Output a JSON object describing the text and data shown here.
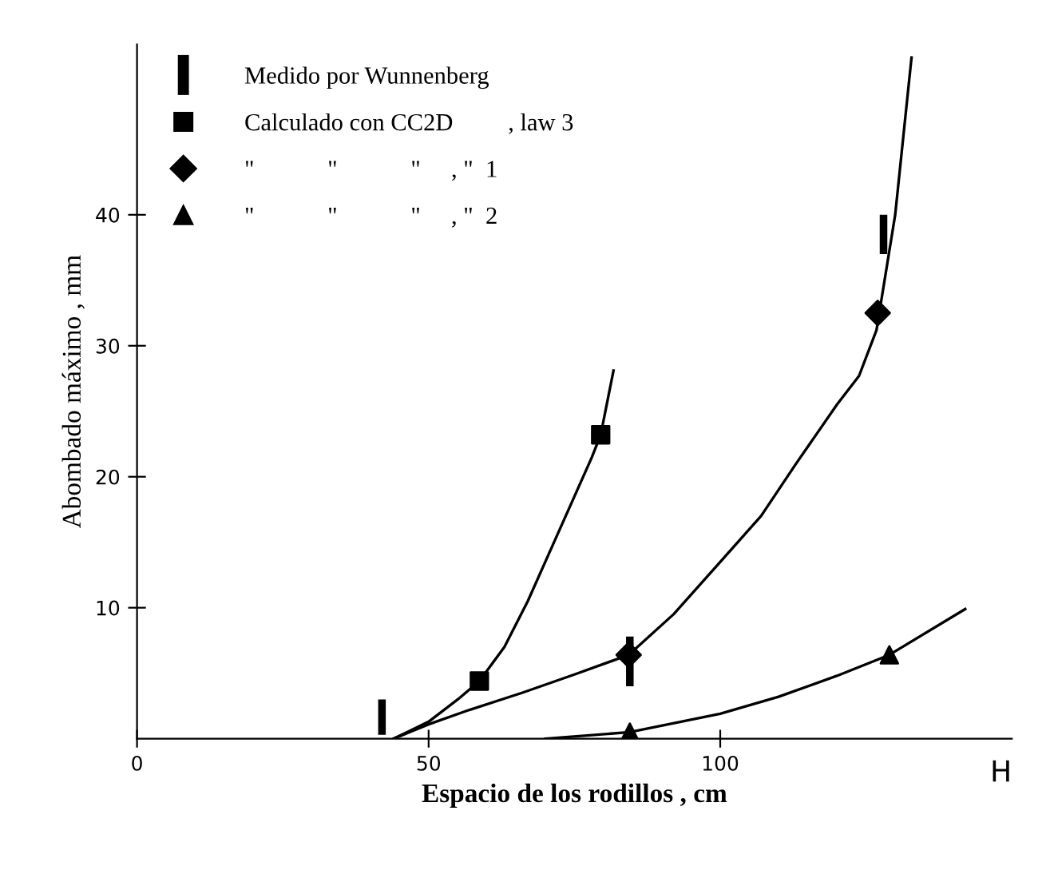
{
  "chart_data": {
    "type": "scatter",
    "xlabel": "Espacio de los rodillos , cm",
    "ylabel": "Abombado máximo , mm",
    "annotations": [
      "H"
    ],
    "xlim": [
      0,
      150
    ],
    "ylim": [
      0,
      53
    ],
    "xticks": [
      0,
      50,
      100
    ],
    "yticks": [
      10,
      20,
      30,
      40
    ],
    "grid": false,
    "legend": "top left",
    "series": [
      {
        "type": "bar",
        "name": "Medido por Wunnenberg",
        "color": "#000000",
        "x": [
          42,
          84.5,
          128
        ],
        "base": [
          0.3,
          4,
          37
        ],
        "values": [
          2.7,
          3.8,
          3
        ]
      },
      {
        "name": "Calculado con CC2D         , law 3",
        "color": "#000000",
        "marker": "square",
        "x": [
          58.7,
          79.5
        ],
        "values": [
          4.4,
          23.2
        ]
      },
      {
        "name": "\"            \"            \"     , \"  1",
        "color": "#000000",
        "marker": "diamond",
        "x": [
          84.3,
          127
        ],
        "values": [
          6.4,
          32.5
        ]
      },
      {
        "name": "\"            \"            \"     , \"  2",
        "color": "#000000",
        "marker": "triangle",
        "x": [
          84.5,
          129
        ],
        "values": [
          0.5,
          6.4
        ]
      },
      {
        "type": "line",
        "color": "#000000",
        "x": [
          44,
          50,
          55,
          58.7,
          63,
          67,
          71,
          75,
          78,
          79.5,
          81.7
        ],
        "values": [
          0,
          1.3,
          3,
          4.4,
          7,
          10.5,
          14.5,
          18.5,
          21.5,
          23.2,
          28.1
        ]
      },
      {
        "type": "line",
        "color": "#000000",
        "x": [
          44,
          50,
          57,
          66,
          75,
          84.3,
          92,
          100,
          107,
          113,
          120,
          123.8,
          126.8,
          130,
          132.8
        ],
        "values": [
          0,
          1.1,
          2.2,
          3.5,
          4.9,
          6.4,
          9.5,
          13.5,
          17,
          21,
          25.5,
          27.7,
          31.2,
          40,
          52
        ]
      },
      {
        "type": "line",
        "color": "#000000",
        "x": [
          70,
          84.5,
          100,
          110,
          120,
          129,
          142
        ],
        "values": [
          0,
          0.5,
          1.9,
          3.2,
          4.8,
          6.4,
          9.9
        ]
      }
    ]
  }
}
